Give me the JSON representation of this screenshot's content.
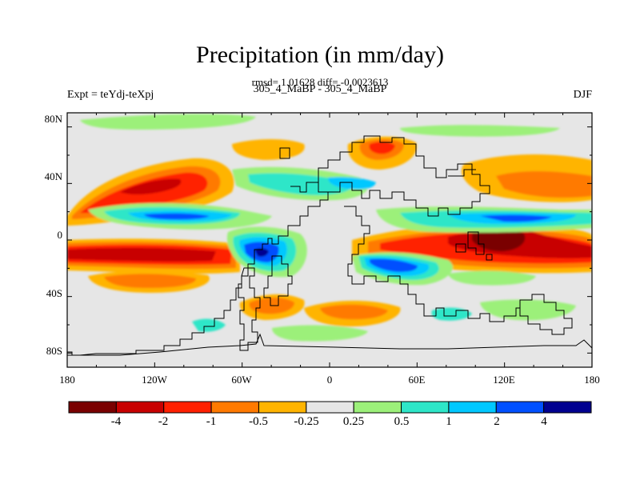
{
  "title": "Precipitation (in mm/day)",
  "stats_line": "rmsd= 1.01628  diff= -0.0023613",
  "left_label": "Expt = teYdj-teXpj",
  "center_label": "305_4_MaBP - 305_4_MaBP",
  "right_label": "DJF",
  "y_ticks": [
    "80N",
    "40N",
    "0",
    "40S",
    "80S"
  ],
  "x_ticks": [
    "180",
    "120W",
    "60W",
    "0",
    "60E",
    "120E",
    "180"
  ],
  "colorbar": {
    "colors": [
      "#7a0000",
      "#c80000",
      "#ff2000",
      "#ff7a00",
      "#ffb400",
      "#e6e6e6",
      "#9cf07a",
      "#2ee6c8",
      "#00c8ff",
      "#0050ff",
      "#000090"
    ],
    "labels": [
      "-4",
      "-2",
      "-1",
      "-0.5",
      "-0.25",
      "0.25",
      "0.5",
      "1",
      "2",
      "4"
    ]
  },
  "map": {
    "background_color": "#e6e6e6",
    "bounds": {
      "lon_min": -180,
      "lon_max": 180,
      "lat_min": -90,
      "lat_max": 90
    }
  }
}
